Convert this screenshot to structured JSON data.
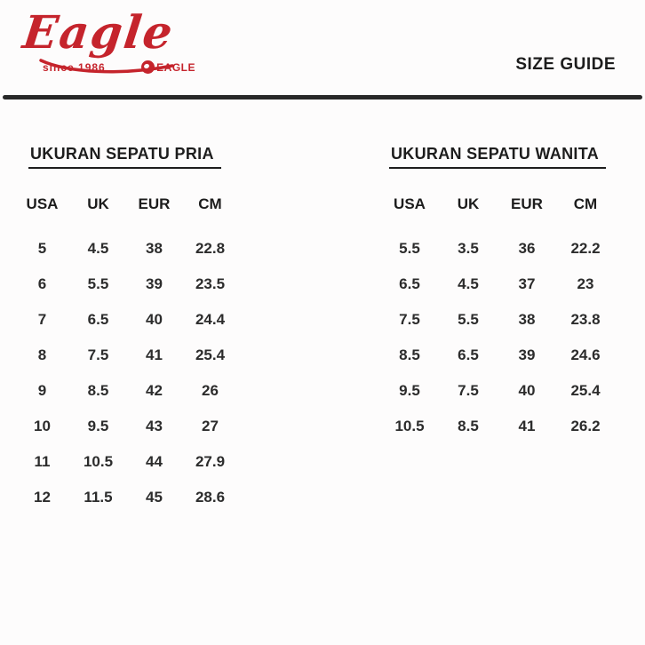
{
  "brand": {
    "wordmark": "Eagle",
    "tagline": "since 1986",
    "emblem_label": "EAGLE",
    "color": "#c5242c"
  },
  "header": {
    "title": "SIZE GUIDE"
  },
  "tables": {
    "men": {
      "title": "UKURAN SEPATU PRIA",
      "columns": [
        "USA",
        "UK",
        "EUR",
        "CM"
      ],
      "rows": [
        [
          "5",
          "4.5",
          "38",
          "22.8"
        ],
        [
          "6",
          "5.5",
          "39",
          "23.5"
        ],
        [
          "7",
          "6.5",
          "40",
          "24.4"
        ],
        [
          "8",
          "7.5",
          "41",
          "25.4"
        ],
        [
          "9",
          "8.5",
          "42",
          "26"
        ],
        [
          "10",
          "9.5",
          "43",
          "27"
        ],
        [
          "11",
          "10.5",
          "44",
          "27.9"
        ],
        [
          "12",
          "11.5",
          "45",
          "28.6"
        ]
      ]
    },
    "women": {
      "title": "UKURAN SEPATU WANITA",
      "columns": [
        "USA",
        "UK",
        "EUR",
        "CM"
      ],
      "rows": [
        [
          "5.5",
          "3.5",
          "36",
          "22.2"
        ],
        [
          "6.5",
          "4.5",
          "37",
          "23"
        ],
        [
          "7.5",
          "5.5",
          "38",
          "23.8"
        ],
        [
          "8.5",
          "6.5",
          "39",
          "24.6"
        ],
        [
          "9.5",
          "7.5",
          "40",
          "25.4"
        ],
        [
          "10.5",
          "8.5",
          "41",
          "26.2"
        ]
      ]
    }
  }
}
